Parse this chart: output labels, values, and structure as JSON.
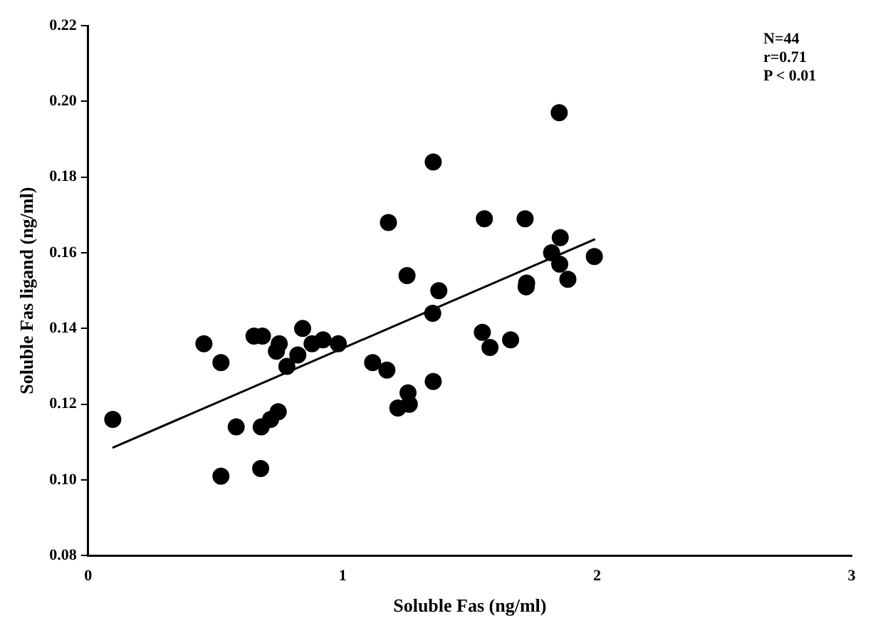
{
  "chart_data": {
    "type": "scatter",
    "xlabel": "Soluble Fas (ng/ml)",
    "ylabel": "Soluble Fas ligand (ng/ml)",
    "xlim": [
      0,
      3
    ],
    "xticks": [
      0,
      1,
      2,
      3
    ],
    "ylim": [
      0.08,
      0.22
    ],
    "yticks": [
      {
        "value": 0.08,
        "label": "0.08"
      },
      {
        "value": 0.1,
        "label": "0.10"
      },
      {
        "value": 0.12,
        "label": "0.12"
      },
      {
        "value": 0.14,
        "label": "0.14"
      },
      {
        "value": 0.16,
        "label": "0.16"
      },
      {
        "value": 0.18,
        "label": "0.18"
      },
      {
        "value": 0.2,
        "label": "0.20"
      },
      {
        "value": 0.22,
        "label": "0.22"
      }
    ],
    "grid": false,
    "legend": false,
    "marker": "circle",
    "annotations": [
      "N=44",
      "r=0.71",
      "P < 0.01"
    ],
    "series": [
      {
        "color": "#000000",
        "x": [
          0.097,
          0.455,
          0.522,
          0.522,
          0.582,
          0.652,
          0.685,
          0.68,
          0.678,
          0.717,
          0.747,
          0.74,
          0.751,
          0.781,
          0.824,
          0.843,
          0.88,
          0.923,
          0.983,
          1.118,
          1.174,
          1.18,
          1.253,
          1.257,
          1.217,
          1.262,
          1.356,
          1.354,
          1.378,
          1.356,
          1.557,
          1.717,
          1.851,
          1.855,
          1.821,
          1.853,
          1.989,
          1.885,
          1.723,
          1.721,
          1.549,
          1.579,
          1.66
        ],
        "values": [
          0.116,
          0.136,
          0.131,
          0.101,
          0.114,
          0.138,
          0.138,
          0.114,
          0.103,
          0.116,
          0.118,
          0.134,
          0.136,
          0.13,
          0.133,
          0.14,
          0.136,
          0.137,
          0.136,
          0.131,
          0.129,
          0.168,
          0.154,
          0.123,
          0.119,
          0.12,
          0.184,
          0.144,
          0.15,
          0.126,
          0.169,
          0.169,
          0.197,
          0.164,
          0.16,
          0.157,
          0.159,
          0.153,
          0.152,
          0.151,
          0.139,
          0.135,
          0.137
        ]
      },
      {
        "type": "line",
        "color": "#000000",
        "marker": "none",
        "x": [
          0.096,
          1.992
        ],
        "values": [
          0.1085,
          0.1636
        ]
      }
    ]
  }
}
